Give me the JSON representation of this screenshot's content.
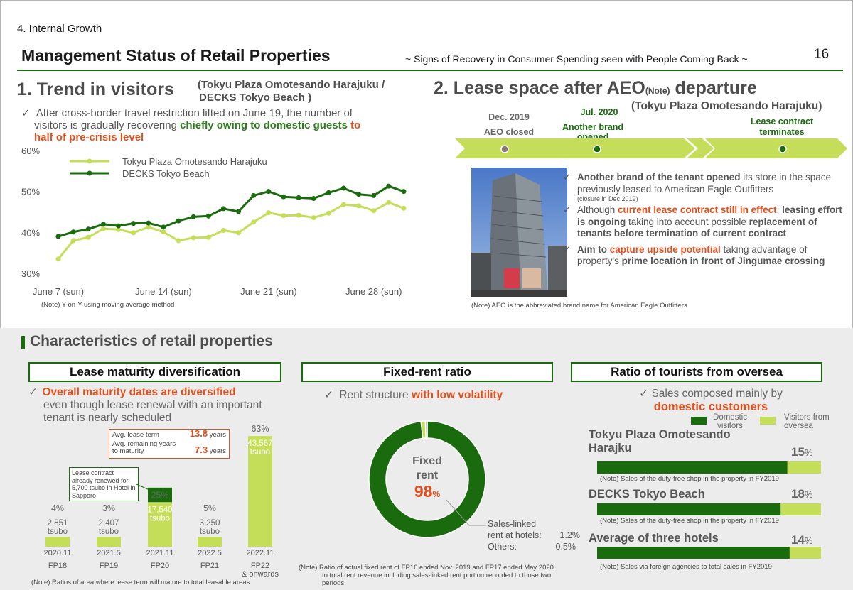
{
  "header": {
    "section": "4. Internal Growth",
    "title": "Management Status of Retail Properties",
    "subtitle": "~ Signs of Recovery in Consumer Spending seen with People Coming Back ~",
    "page_number": "16"
  },
  "trend": {
    "heading": "1. Trend in visitors",
    "heading_sub1": "(Tokyu Plaza Omotesando Harajuku /",
    "heading_sub2": "DECKS Tokyo Beach )",
    "bullet_a": "After cross-border travel restriction lifted on June 19, the number of",
    "bullet_b": "visitors is gradually recovering ",
    "bullet_c": "chiefly owing to domestic guests",
    "bullet_d": " to",
    "bullet_e": "half of pre-crisis level",
    "note": "(Note) Y-on-Y using moving average method"
  },
  "lease_space": {
    "heading": "2. Lease space after AEO",
    "heading_note": "(Note)",
    "heading_end": " departure",
    "heading_sub": "(Tokyu Plaza Omotesando Harajuku)",
    "timeline": [
      {
        "date": "Dec. 2019",
        "text": "AEO closed",
        "dot": "#8a7a7a"
      },
      {
        "date": "Jul. 2020",
        "text": "Another brand opened",
        "dot": "#1a6b0e"
      },
      {
        "date": "",
        "text": "Lease contract terminates",
        "dot": "#1a6b0e"
      }
    ],
    "b1_bold": "Another brand of the tenant opened",
    "b1_rest": " its store in the space previously leased to American Eagle Outfitters",
    "b1_small": "(closure in Dec.2019)",
    "b2_pre": "Although ",
    "b2_orange": "current lease contract still in effect",
    "b2_mid": ",",
    "b2_bold1": "leasing effort is ongoing",
    "b2_rest1": " taking into account possible",
    "b2_bold2": "replacement of tenants before termination of current contract",
    "b3_bold1": "Aim to ",
    "b3_orange": "capture upside potential",
    "b3_rest1": " taking advantage of property's ",
    "b3_bold2": "prime location in front of Jingumae crossing",
    "note": "(Note) AEO is the abbreviated brand name for American Eagle Outfitters"
  },
  "characteristics": {
    "heading": "Characteristics of retail properties",
    "maturity": {
      "title": "Lease maturity diversification",
      "b_orange": "Overall maturity dates are diversified",
      "b_rest1": "even though lease renewal with an important",
      "b_rest2": "tenant is nearly scheduled",
      "avg_label1": "Avg. lease term",
      "avg_val1": "13.8",
      "avg_unit1": "years",
      "avg_label2a": "Avg. remaining years",
      "avg_label2b": "to maturity",
      "avg_val2": "7.3",
      "avg_unit2": "years",
      "renewed_note": "Lease contract already renewed for 5,700 tsubo in Hotel in Sapporo",
      "note": "(Note) Ratios of area where lease term will mature to total leasable areas"
    },
    "fixed_rent": {
      "title": "Fixed-rent ratio",
      "b_pre": "Rent structure ",
      "b_orange": "with low volatility",
      "center1": "Fixed",
      "center2": "rent",
      "center_val": "98",
      "center_unit": "%",
      "side1": "Sales-linked",
      "side2a": "rent at hotels:",
      "side2b": "1.2%",
      "side3a": "Others:",
      "side3b": "0.5%",
      "note1": "(Note) Ratio of actual fixed rent of FP16 ended Nov. 2019 and FP17 ended May 2020",
      "note2": "to total rent revenue including sales-linked rent portion recorded to those two",
      "note3": "periods"
    },
    "tourists": {
      "title": "Ratio of tourists from oversea",
      "b_pre": "Sales composed mainly by",
      "b_orange": "domestic customers",
      "legend_domestic": "Domestic visitors",
      "legend_oversea": "Visitors from oversea",
      "items": [
        {
          "name1": "Tokyu Plaza Omotesando",
          "name2": "Harajku",
          "value": "15",
          "note": "(Note) Sales of the duty-free shop in the property in FY2019"
        },
        {
          "name1": "DECKS Tokyo Beach",
          "name2": "",
          "value": "18",
          "note": "(Note) Sales of the duty-free shop in the property in FY2019"
        },
        {
          "name1": "Average of three hotels",
          "name2": "",
          "value": "14",
          "note": "(Note) Sales via foreign agencies to total sales in FY2019"
        }
      ],
      "unit": "%"
    }
  },
  "chart_data": [
    {
      "type": "line",
      "x": [
        "2020-06-07",
        "2020-06-08",
        "2020-06-09",
        "2020-06-10",
        "2020-06-11",
        "2020-06-12",
        "2020-06-13",
        "2020-06-14",
        "2020-06-15",
        "2020-06-16",
        "2020-06-17",
        "2020-06-18",
        "2020-06-19",
        "2020-06-20",
        "2020-06-21",
        "2020-06-22",
        "2020-06-23",
        "2020-06-24",
        "2020-06-25",
        "2020-06-26",
        "2020-06-27",
        "2020-06-28",
        "2020-06-29",
        "2020-06-30"
      ],
      "xticks": [
        "June 7 (sun)",
        "June 14 (sun)",
        "June 21 (sun)",
        "June 28 (sun)"
      ],
      "xtick_values": [
        "2020-06-07",
        "2020-06-14",
        "2020-06-21",
        "2020-06-28"
      ],
      "yticks": [
        "60%",
        "50%",
        "40%",
        "30%"
      ],
      "ylim": [
        30,
        60
      ],
      "series": [
        {
          "name": "Tokyu Plaza Omotesando Harajuku",
          "color": "#c5de5a",
          "values": [
            33.5,
            38,
            38.8,
            40.9,
            40.7,
            39.9,
            41.3,
            40.1,
            38,
            38.7,
            38.8,
            40.5,
            39.9,
            42.5,
            44.8,
            44.1,
            44.2,
            43.6,
            44.7,
            46.8,
            46.5,
            45.3,
            47.3,
            45.9
          ]
        },
        {
          "name": "DECKS Tokyo Beach",
          "color": "#1a6b0e",
          "values": [
            39,
            40.1,
            40.8,
            42,
            41.6,
            42.2,
            42.3,
            41.3,
            42.8,
            43.8,
            44,
            45.8,
            45.1,
            49,
            50,
            48.7,
            48.5,
            48.3,
            49.7,
            50.8,
            49.3,
            49,
            51.3,
            50
          ]
        }
      ],
      "legend": "top-left"
    },
    {
      "type": "bar",
      "stacked": true,
      "categories": [
        "FP18",
        "FP19",
        "FP20",
        "FP21",
        "FP22"
      ],
      "category_sub": [
        "",
        "",
        "",
        "",
        "& onwards"
      ],
      "dates": [
        "2020.11",
        "2021.5",
        "2021.11",
        "2022.5",
        "2022.11"
      ],
      "percent_labels": [
        "4%",
        "3%",
        "25%",
        "5%",
        "63%"
      ],
      "series": [
        {
          "color": "#c5de5a",
          "values": [
            2851,
            2407,
            17540,
            3250,
            43567
          ],
          "labels": [
            "2,851 tsubo",
            "2,407 tsubo",
            "17,540 tsubo",
            "3,250 tsubo",
            "43,567 tsubo"
          ]
        },
        {
          "color": "#1a6b0e",
          "values": [
            0,
            0,
            5700,
            0,
            0
          ]
        }
      ]
    },
    {
      "type": "pie",
      "donut": true,
      "slices": [
        {
          "label": "Fixed rent",
          "value": 98.3,
          "color": "#1a6b0e"
        },
        {
          "label": "Sales-linked rent at hotels",
          "value": 1.2,
          "color": "#c5de5a"
        },
        {
          "label": "Others",
          "value": 0.5,
          "color": "#a7a7a7"
        }
      ]
    },
    {
      "type": "bar",
      "orientation": "horizontal",
      "stacked": true,
      "categories": [
        "Tokyu Plaza Omotesando Harajku",
        "DECKS Tokyo Beach",
        "Average of three hotels"
      ],
      "series": [
        {
          "name": "Domestic visitors",
          "color": "#1a6b0e",
          "values": [
            85,
            82,
            86
          ]
        },
        {
          "name": "Visitors from oversea",
          "color": "#c5de5a",
          "values": [
            15,
            18,
            14
          ]
        }
      ]
    }
  ],
  "colors": {
    "accent": "#1a6b0e",
    "light": "#c5de5a",
    "orange": "#e0501e"
  }
}
